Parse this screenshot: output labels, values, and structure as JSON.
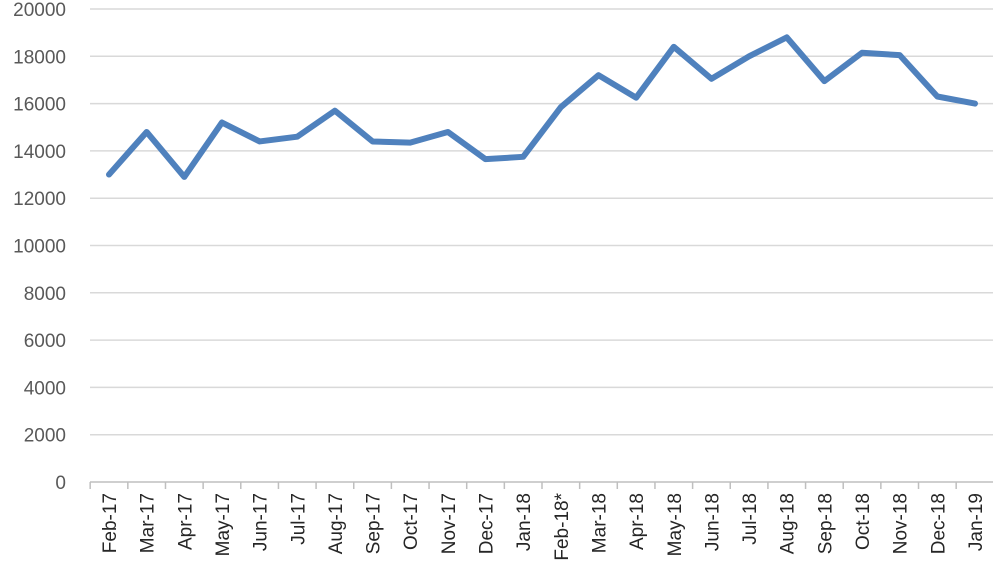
{
  "chart_data": {
    "type": "line",
    "title": "",
    "xlabel": "",
    "ylabel": "",
    "categories": [
      "Feb-17",
      "Mar-17",
      "Apr-17",
      "May-17",
      "Jun-17",
      "Jul-17",
      "Aug-17",
      "Sep-17",
      "Oct-17",
      "Nov-17",
      "Dec-17",
      "Jan-18",
      "Feb-18*",
      "Mar-18",
      "Apr-18",
      "May-18",
      "Jun-18",
      "Jul-18",
      "Aug-18",
      "Sep-18",
      "Oct-18",
      "Nov-18",
      "Dec-18",
      "Jan-19"
    ],
    "series": [
      {
        "values": [
          13000,
          14800,
          12900,
          15200,
          14400,
          14600,
          15700,
          14400,
          14350,
          14800,
          13650,
          13750,
          15850,
          17200,
          16250,
          18400,
          17050,
          18000,
          18800,
          16950,
          18150,
          18050,
          16300,
          16000
        ],
        "color": "#4f81bd"
      }
    ],
    "ylim": [
      0,
      20000
    ],
    "yticks": [
      0,
      2000,
      4000,
      6000,
      8000,
      10000,
      12000,
      14000,
      16000,
      18000,
      20000
    ],
    "grid": true,
    "legend": "none"
  }
}
